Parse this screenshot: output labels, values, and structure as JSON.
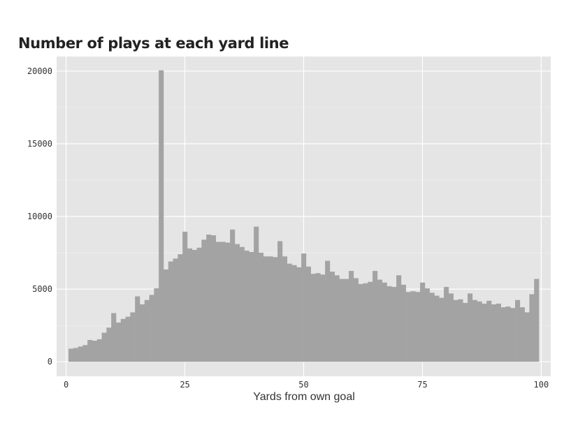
{
  "chart_data": {
    "type": "bar",
    "title": "Number of plays at each yard line",
    "xlabel": "Yards from own goal",
    "ylabel": "",
    "xlim": [
      -2,
      102
    ],
    "ylim": [
      -1000,
      21000
    ],
    "x_ticks": [
      0,
      25,
      50,
      75,
      100
    ],
    "x_tick_labels": [
      "0",
      "25",
      "50",
      "75",
      "100"
    ],
    "y_ticks": [
      0,
      5000,
      10000,
      15000,
      20000
    ],
    "y_tick_labels": [
      "0",
      "5000",
      "10000",
      "15000",
      "20000"
    ],
    "grid": true,
    "background_color": "#e5e5e5",
    "bar_color": "#a3a3a3",
    "x": [
      1,
      2,
      3,
      4,
      5,
      6,
      7,
      8,
      9,
      10,
      11,
      12,
      13,
      14,
      15,
      16,
      17,
      18,
      19,
      20,
      21,
      22,
      23,
      24,
      25,
      26,
      27,
      28,
      29,
      30,
      31,
      32,
      33,
      34,
      35,
      36,
      37,
      38,
      39,
      40,
      41,
      42,
      43,
      44,
      45,
      46,
      47,
      48,
      49,
      50,
      51,
      52,
      53,
      54,
      55,
      56,
      57,
      58,
      59,
      60,
      61,
      62,
      63,
      64,
      65,
      66,
      67,
      68,
      69,
      70,
      71,
      72,
      73,
      74,
      75,
      76,
      77,
      78,
      79,
      80,
      81,
      82,
      83,
      84,
      85,
      86,
      87,
      88,
      89,
      90,
      91,
      92,
      93,
      94,
      95,
      96,
      97,
      98,
      99,
      100
    ],
    "values": [
      900,
      950,
      1050,
      1150,
      1500,
      1450,
      1550,
      2000,
      2350,
      3350,
      2700,
      2950,
      3100,
      3400,
      4500,
      3950,
      4250,
      4600,
      5050,
      20050,
      6350,
      6900,
      7100,
      7400,
      8950,
      7800,
      7700,
      7850,
      8400,
      8750,
      8700,
      8250,
      8250,
      8200,
      9100,
      8100,
      7900,
      7650,
      7550,
      9300,
      7500,
      7250,
      7250,
      7200,
      8300,
      7250,
      6750,
      6650,
      6500,
      7450,
      6550,
      6050,
      6100,
      6000,
      6950,
      6200,
      5950,
      5700,
      5700,
      6250,
      5750,
      5350,
      5400,
      5500,
      6250,
      5650,
      5450,
      5200,
      5150,
      5950,
      5300,
      4800,
      4850,
      4800,
      5450,
      5050,
      4750,
      4550,
      4400,
      5150,
      4700,
      4250,
      4300,
      4050,
      4700,
      4250,
      4150,
      4000,
      4200,
      3950,
      4000,
      3750,
      3800,
      3700,
      4250,
      3750,
      3400,
      4650,
      5700,
      0
    ]
  }
}
